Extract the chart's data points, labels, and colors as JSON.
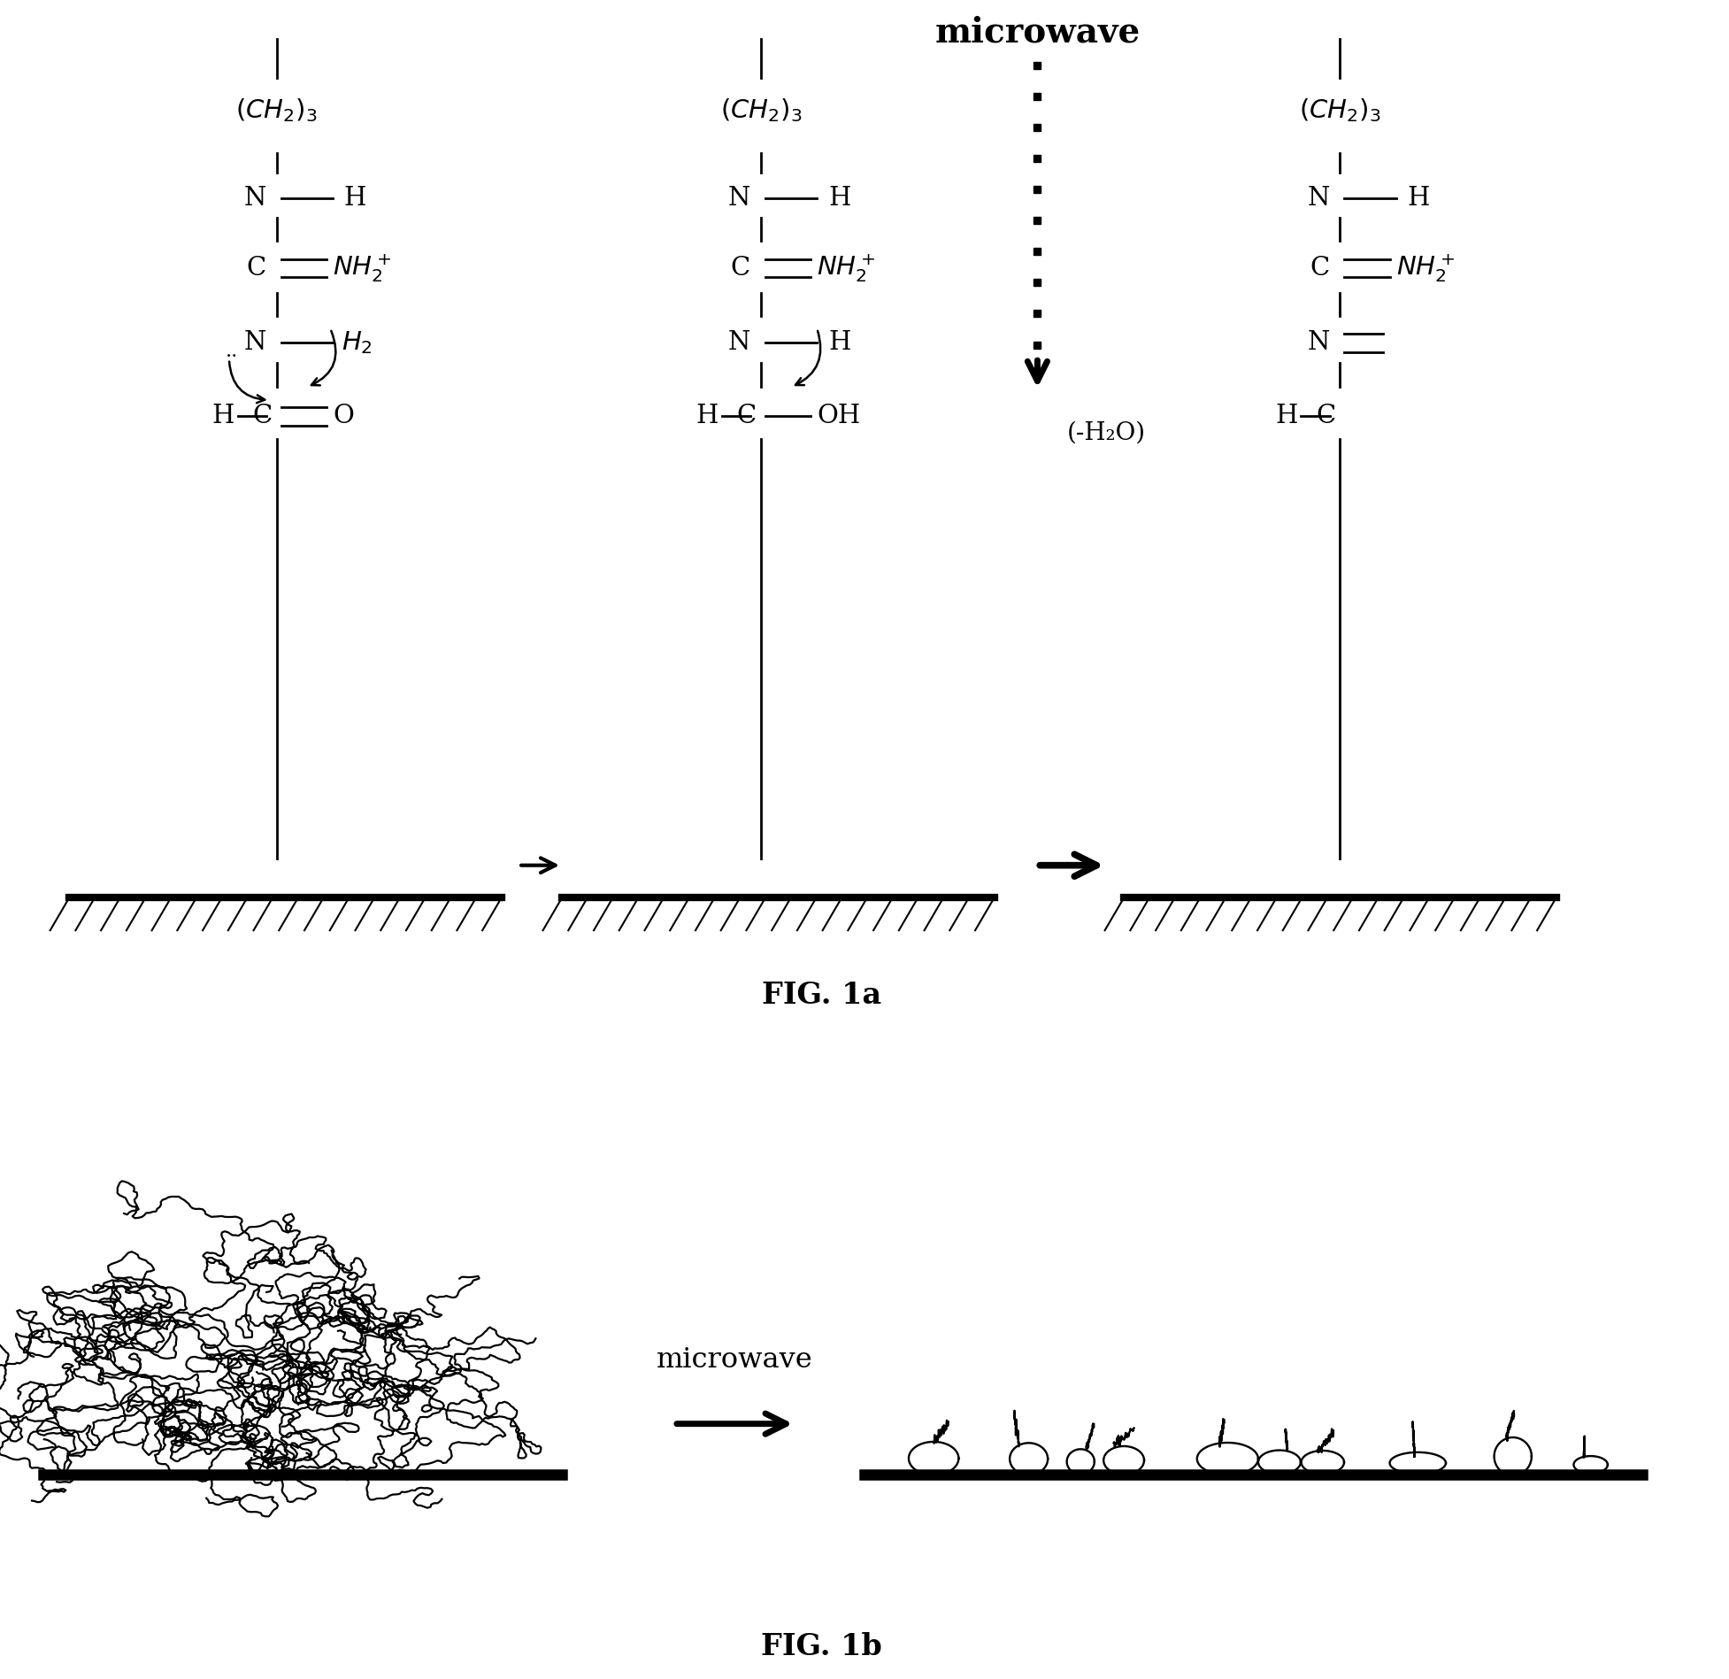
{
  "fig_width": 19.54,
  "fig_height": 18.97,
  "bg_color": "#ffffff",
  "title_1a": "FIG. 1a",
  "title_1b": "FIG. 1b",
  "microwave_label": "microwave",
  "h2o_label": "(-H₂O)",
  "fs_chem": 21,
  "fs_title": 22,
  "fs_microwave": 28,
  "fs_fig": 24
}
